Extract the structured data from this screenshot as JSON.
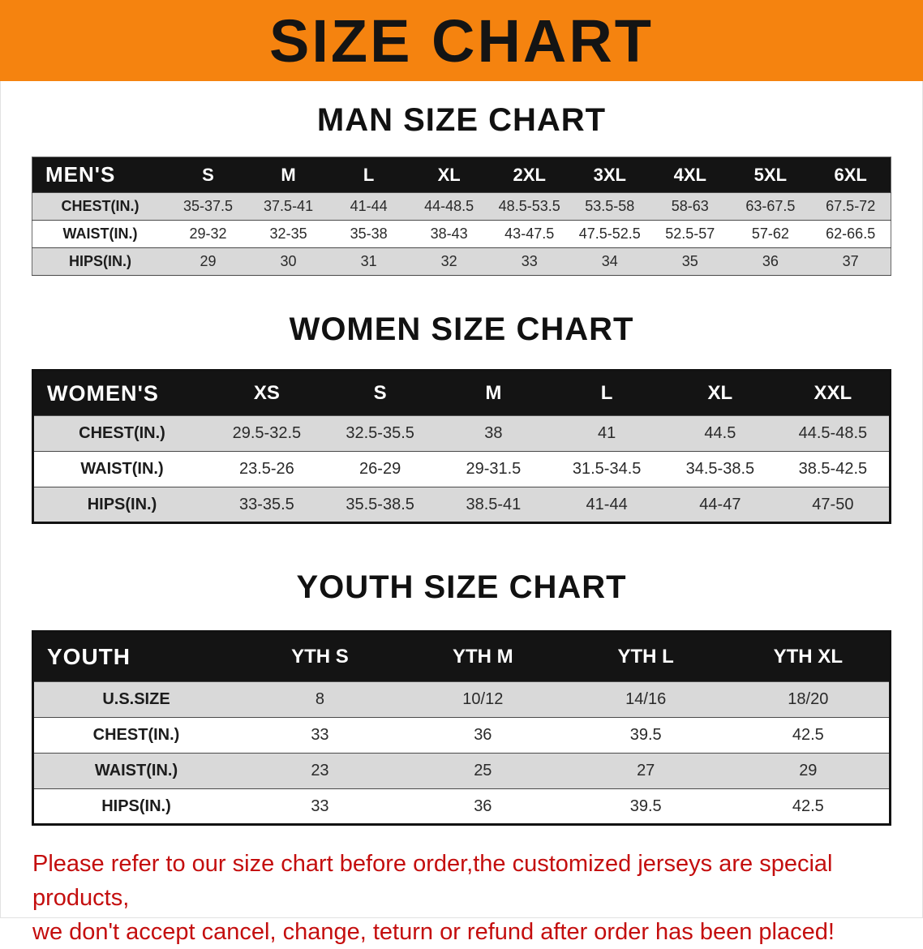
{
  "banner": {
    "title": "SIZE CHART",
    "background_color": "#f5830f",
    "text_color": "#141414"
  },
  "chart_data": [
    {
      "type": "table",
      "title": "MAN SIZE CHART",
      "corner_label": "MEN'S",
      "columns": [
        "S",
        "M",
        "L",
        "XL",
        "2XL",
        "3XL",
        "4XL",
        "5XL",
        "6XL"
      ],
      "rows": [
        {
          "label": "CHEST(IN.)",
          "values": [
            "35-37.5",
            "37.5-41",
            "41-44",
            "44-48.5",
            "48.5-53.5",
            "53.5-58",
            "58-63",
            "63-67.5",
            "67.5-72"
          ]
        },
        {
          "label": "WAIST(IN.)",
          "values": [
            "29-32",
            "32-35",
            "35-38",
            "38-43",
            "43-47.5",
            "47.5-52.5",
            "52.5-57",
            "57-62",
            "62-66.5"
          ]
        },
        {
          "label": "HIPS(IN.)",
          "values": [
            "29",
            "30",
            "31",
            "32",
            "33",
            "34",
            "35",
            "36",
            "37"
          ]
        }
      ]
    },
    {
      "type": "table",
      "title": "WOMEN SIZE CHART",
      "corner_label": "WOMEN'S",
      "columns": [
        "XS",
        "S",
        "M",
        "L",
        "XL",
        "XXL"
      ],
      "rows": [
        {
          "label": "CHEST(IN.)",
          "values": [
            "29.5-32.5",
            "32.5-35.5",
            "38",
            "41",
            "44.5",
            "44.5-48.5"
          ]
        },
        {
          "label": "WAIST(IN.)",
          "values": [
            "23.5-26",
            "26-29",
            "29-31.5",
            "31.5-34.5",
            "34.5-38.5",
            "38.5-42.5"
          ]
        },
        {
          "label": "HIPS(IN.)",
          "values": [
            "33-35.5",
            "35.5-38.5",
            "38.5-41",
            "41-44",
            "44-47",
            "47-50"
          ]
        }
      ]
    },
    {
      "type": "table",
      "title": "YOUTH SIZE CHART",
      "corner_label": "YOUTH",
      "columns": [
        "YTH S",
        "YTH M",
        "YTH L",
        "YTH XL"
      ],
      "rows": [
        {
          "label": "U.S.SIZE",
          "values": [
            "8",
            "10/12",
            "14/16",
            "18/20"
          ]
        },
        {
          "label": "CHEST(IN.)",
          "values": [
            "33",
            "36",
            "39.5",
            "42.5"
          ]
        },
        {
          "label": "WAIST(IN.)",
          "values": [
            "23",
            "25",
            "27",
            "29"
          ]
        },
        {
          "label": "HIPS(IN.)",
          "values": [
            "33",
            "36",
            "39.5",
            "42.5"
          ]
        }
      ]
    }
  ],
  "footer": {
    "color": "#c40e0e",
    "lines": [
      "Please refer to our size chart before order,the customized jerseys are special products,",
      "we don't accept cancel, change, teturn or refund after order has been placed!"
    ]
  }
}
